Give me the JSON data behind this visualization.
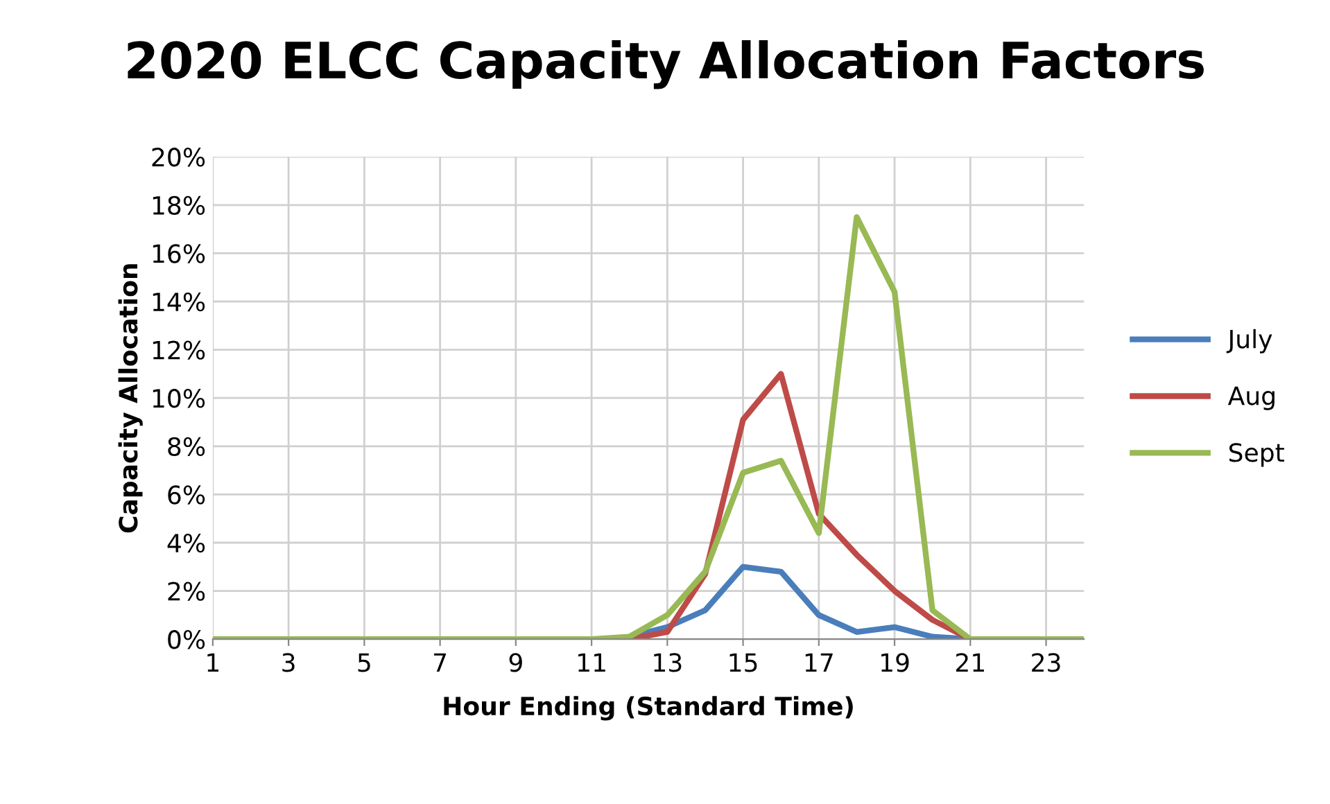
{
  "chart_data": {
    "type": "line",
    "title": "2020 ELCC Capacity Allocation Factors",
    "xlabel": "Hour Ending (Standard Time)",
    "ylabel": "Capacity Allocation",
    "x": [
      1,
      2,
      3,
      4,
      5,
      6,
      7,
      8,
      9,
      10,
      11,
      12,
      13,
      14,
      15,
      16,
      17,
      18,
      19,
      20,
      21,
      22,
      23,
      24
    ],
    "series": [
      {
        "name": "July",
        "color": "#4a7ebb",
        "values": [
          null,
          null,
          null,
          null,
          null,
          null,
          null,
          null,
          null,
          null,
          null,
          0.1,
          0.5,
          1.2,
          3.0,
          2.8,
          1.0,
          0.3,
          0.5,
          0.1,
          0,
          null,
          null,
          null
        ]
      },
      {
        "name": "Aug",
        "color": "#be4b48",
        "values": [
          null,
          null,
          null,
          null,
          null,
          null,
          null,
          null,
          null,
          null,
          null,
          0,
          0.3,
          2.7,
          9.1,
          11.0,
          5.2,
          3.5,
          2.0,
          0.8,
          0,
          null,
          null,
          null
        ]
      },
      {
        "name": "Sept",
        "color": "#98b954",
        "values": [
          0,
          0,
          0,
          0,
          0,
          0,
          0,
          0,
          0,
          0,
          0,
          0.1,
          1.0,
          2.8,
          6.9,
          7.4,
          4.4,
          17.5,
          14.4,
          1.2,
          0,
          0,
          0,
          0
        ]
      }
    ],
    "xlim": [
      1,
      24
    ],
    "xticks": [
      1,
      3,
      5,
      7,
      9,
      11,
      13,
      15,
      17,
      19,
      21,
      23
    ],
    "ylim": [
      0,
      20
    ],
    "yticks": [
      {
        "value": 0,
        "label": "0%"
      },
      {
        "value": 2,
        "label": "2%"
      },
      {
        "value": 4,
        "label": "4%"
      },
      {
        "value": 6,
        "label": "6%"
      },
      {
        "value": 8,
        "label": "8%"
      },
      {
        "value": 10,
        "label": "10%"
      },
      {
        "value": 12,
        "label": "12%"
      },
      {
        "value": 14,
        "label": "14%"
      },
      {
        "value": 16,
        "label": "16%"
      },
      {
        "value": 18,
        "label": "18%"
      },
      {
        "value": 20,
        "label": "20%"
      }
    ],
    "grid": true,
    "legend": "right",
    "marker": "none",
    "line_style": "solid"
  }
}
